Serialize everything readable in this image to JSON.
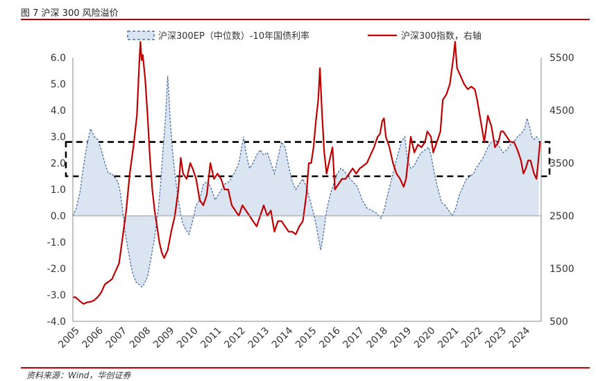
{
  "figure": {
    "title": "图 7 沪深 300 风险溢价",
    "source": "资料来源：Wind，华创证券"
  },
  "colors": {
    "ep_fill": "#dbe5f1",
    "ep_line": "#4a6fa5",
    "index_line": "#c00000",
    "box": "#000000"
  },
  "chart_data": {
    "type": "line",
    "title": "",
    "legend": {
      "placement": "top-center"
    },
    "grid": false,
    "x": {
      "ticks": [
        "2005",
        "2006",
        "2007",
        "2008",
        "2009",
        "2010",
        "2011",
        "2012",
        "2013",
        "2014",
        "2015",
        "2016",
        "2017",
        "2018",
        "2019",
        "2020",
        "2021",
        "2022",
        "2023",
        "2024"
      ],
      "range": [
        2005.0,
        2024.75
      ]
    },
    "y_left": {
      "range": [
        -4.0,
        6.0
      ],
      "ticks": [
        "-4.0",
        "-3.0",
        "-2.0",
        "-1.0",
        "0.0",
        "1.0",
        "2.0",
        "3.0",
        "4.0",
        "5.0",
        "6.0"
      ]
    },
    "y_right": {
      "range": [
        500,
        5500
      ],
      "ticks": [
        "500",
        "1500",
        "2500",
        "3500",
        "4500",
        "5500"
      ]
    },
    "band": {
      "lower": 1.5,
      "upper": 2.8
    },
    "series": [
      {
        "name": "沪深300EP（中位数）-10年国债利率",
        "style": "area-dashed",
        "axis": "left",
        "points": [
          [
            2005.0,
            0.0
          ],
          [
            2005.15,
            0.3
          ],
          [
            2005.3,
            0.9
          ],
          [
            2005.45,
            1.9
          ],
          [
            2005.6,
            2.7
          ],
          [
            2005.75,
            3.3
          ],
          [
            2005.9,
            3.0
          ],
          [
            2006.05,
            2.9
          ],
          [
            2006.2,
            2.5
          ],
          [
            2006.35,
            2.0
          ],
          [
            2006.5,
            1.6
          ],
          [
            2006.65,
            1.6
          ],
          [
            2006.8,
            1.4
          ],
          [
            2006.9,
            1.3
          ],
          [
            2007.0,
            0.9
          ],
          [
            2007.1,
            0.2
          ],
          [
            2007.2,
            -0.6
          ],
          [
            2007.35,
            -1.4
          ],
          [
            2007.5,
            -2.1
          ],
          [
            2007.65,
            -2.5
          ],
          [
            2007.8,
            -2.6
          ],
          [
            2007.9,
            -2.7
          ],
          [
            2008.0,
            -2.6
          ],
          [
            2008.15,
            -2.3
          ],
          [
            2008.3,
            -1.6
          ],
          [
            2008.45,
            -0.8
          ],
          [
            2008.6,
            0.2
          ],
          [
            2008.7,
            1.2
          ],
          [
            2008.8,
            2.5
          ],
          [
            2008.9,
            3.6
          ],
          [
            2009.0,
            5.3
          ],
          [
            2009.05,
            4.6
          ],
          [
            2009.1,
            3.7
          ],
          [
            2009.2,
            2.5
          ],
          [
            2009.3,
            1.6
          ],
          [
            2009.45,
            0.6
          ],
          [
            2009.6,
            -0.2
          ],
          [
            2009.75,
            -0.5
          ],
          [
            2009.9,
            -0.7
          ],
          [
            2010.05,
            -0.2
          ],
          [
            2010.2,
            0.4
          ],
          [
            2010.35,
            0.6
          ],
          [
            2010.5,
            1.2
          ],
          [
            2010.7,
            1.3
          ],
          [
            2010.85,
            1.0
          ],
          [
            2011.0,
            0.6
          ],
          [
            2011.2,
            0.9
          ],
          [
            2011.4,
            1.2
          ],
          [
            2011.6,
            1.3
          ],
          [
            2011.8,
            1.6
          ],
          [
            2012.0,
            2.0
          ],
          [
            2012.1,
            2.5
          ],
          [
            2012.2,
            3.0
          ],
          [
            2012.3,
            2.4
          ],
          [
            2012.45,
            1.8
          ],
          [
            2012.6,
            2.0
          ],
          [
            2012.75,
            2.3
          ],
          [
            2012.9,
            2.5
          ],
          [
            2013.05,
            2.3
          ],
          [
            2013.2,
            2.4
          ],
          [
            2013.35,
            2.0
          ],
          [
            2013.5,
            1.6
          ],
          [
            2013.65,
            2.2
          ],
          [
            2013.8,
            2.8
          ],
          [
            2013.95,
            2.6
          ],
          [
            2014.1,
            1.9
          ],
          [
            2014.25,
            1.3
          ],
          [
            2014.4,
            1.0
          ],
          [
            2014.55,
            1.2
          ],
          [
            2014.7,
            1.4
          ],
          [
            2014.85,
            1.1
          ],
          [
            2015.0,
            0.6
          ],
          [
            2015.15,
            0.1
          ],
          [
            2015.25,
            -0.3
          ],
          [
            2015.35,
            -0.8
          ],
          [
            2015.45,
            -1.3
          ],
          [
            2015.55,
            -0.8
          ],
          [
            2015.7,
            0.2
          ],
          [
            2015.85,
            0.8
          ],
          [
            2016.0,
            1.2
          ],
          [
            2016.15,
            1.6
          ],
          [
            2016.3,
            1.8
          ],
          [
            2016.45,
            1.7
          ],
          [
            2016.6,
            1.5
          ],
          [
            2016.8,
            1.3
          ],
          [
            2017.0,
            1.1
          ],
          [
            2017.2,
            0.6
          ],
          [
            2017.4,
            0.3
          ],
          [
            2017.6,
            0.2
          ],
          [
            2017.8,
            0.1
          ],
          [
            2018.0,
            -0.1
          ],
          [
            2018.15,
            0.3
          ],
          [
            2018.3,
            0.9
          ],
          [
            2018.5,
            1.6
          ],
          [
            2018.7,
            2.3
          ],
          [
            2018.85,
            2.8
          ],
          [
            2019.0,
            3.0
          ],
          [
            2019.1,
            2.2
          ],
          [
            2019.25,
            1.8
          ],
          [
            2019.4,
            1.9
          ],
          [
            2019.55,
            2.2
          ],
          [
            2019.7,
            2.4
          ],
          [
            2019.85,
            2.5
          ],
          [
            2020.0,
            2.6
          ],
          [
            2020.1,
            2.3
          ],
          [
            2020.25,
            1.6
          ],
          [
            2020.4,
            1.0
          ],
          [
            2020.55,
            0.5
          ],
          [
            2020.7,
            0.4
          ],
          [
            2020.85,
            0.2
          ],
          [
            2021.0,
            0.0
          ],
          [
            2021.15,
            0.3
          ],
          [
            2021.3,
            0.8
          ],
          [
            2021.45,
            1.1
          ],
          [
            2021.6,
            1.4
          ],
          [
            2021.75,
            1.5
          ],
          [
            2021.9,
            1.6
          ],
          [
            2022.0,
            1.8
          ],
          [
            2022.15,
            2.0
          ],
          [
            2022.3,
            2.2
          ],
          [
            2022.5,
            2.6
          ],
          [
            2022.65,
            2.8
          ],
          [
            2022.8,
            2.9
          ],
          [
            2023.0,
            2.6
          ],
          [
            2023.15,
            2.4
          ],
          [
            2023.3,
            2.5
          ],
          [
            2023.45,
            2.7
          ],
          [
            2023.6,
            2.8
          ],
          [
            2023.75,
            3.0
          ],
          [
            2023.9,
            3.1
          ],
          [
            2024.05,
            3.3
          ],
          [
            2024.15,
            3.7
          ],
          [
            2024.25,
            3.4
          ],
          [
            2024.35,
            3.0
          ],
          [
            2024.45,
            2.9
          ],
          [
            2024.55,
            3.0
          ],
          [
            2024.65,
            2.9
          ]
        ]
      },
      {
        "name": "沪深300指数，右轴",
        "style": "line",
        "axis": "right",
        "points": [
          [
            2005.0,
            950
          ],
          [
            2005.1,
            960
          ],
          [
            2005.2,
            920
          ],
          [
            2005.3,
            880
          ],
          [
            2005.45,
            830
          ],
          [
            2005.6,
            860
          ],
          [
            2005.75,
            870
          ],
          [
            2005.9,
            900
          ],
          [
            2006.05,
            960
          ],
          [
            2006.2,
            1050
          ],
          [
            2006.35,
            1200
          ],
          [
            2006.5,
            1250
          ],
          [
            2006.65,
            1300
          ],
          [
            2006.8,
            1450
          ],
          [
            2006.95,
            1600
          ],
          [
            2007.1,
            2100
          ],
          [
            2007.25,
            2600
          ],
          [
            2007.4,
            3300
          ],
          [
            2007.55,
            3800
          ],
          [
            2007.7,
            4400
          ],
          [
            2007.8,
            5400
          ],
          [
            2007.85,
            5800
          ],
          [
            2007.9,
            5450
          ],
          [
            2007.95,
            5550
          ],
          [
            2008.05,
            5100
          ],
          [
            2008.15,
            4400
          ],
          [
            2008.25,
            3600
          ],
          [
            2008.35,
            3000
          ],
          [
            2008.45,
            2600
          ],
          [
            2008.55,
            2300
          ],
          [
            2008.65,
            2000
          ],
          [
            2008.75,
            1800
          ],
          [
            2008.85,
            1700
          ],
          [
            2009.0,
            1850
          ],
          [
            2009.15,
            2200
          ],
          [
            2009.3,
            2500
          ],
          [
            2009.45,
            3000
          ],
          [
            2009.55,
            3600
          ],
          [
            2009.65,
            3300
          ],
          [
            2009.8,
            3200
          ],
          [
            2009.95,
            3500
          ],
          [
            2010.05,
            3400
          ],
          [
            2010.2,
            3200
          ],
          [
            2010.35,
            2800
          ],
          [
            2010.5,
            2700
          ],
          [
            2010.65,
            2900
          ],
          [
            2010.8,
            3500
          ],
          [
            2010.95,
            3200
          ],
          [
            2011.1,
            3300
          ],
          [
            2011.25,
            3200
          ],
          [
            2011.4,
            3000
          ],
          [
            2011.55,
            3000
          ],
          [
            2011.7,
            2700
          ],
          [
            2011.85,
            2600
          ],
          [
            2012.0,
            2500
          ],
          [
            2012.15,
            2700
          ],
          [
            2012.3,
            2600
          ],
          [
            2012.45,
            2500
          ],
          [
            2012.6,
            2400
          ],
          [
            2012.75,
            2300
          ],
          [
            2012.9,
            2500
          ],
          [
            2013.05,
            2700
          ],
          [
            2013.2,
            2500
          ],
          [
            2013.35,
            2600
          ],
          [
            2013.5,
            2200
          ],
          [
            2013.65,
            2400
          ],
          [
            2013.8,
            2400
          ],
          [
            2013.95,
            2300
          ],
          [
            2014.1,
            2200
          ],
          [
            2014.25,
            2200
          ],
          [
            2014.4,
            2150
          ],
          [
            2014.55,
            2300
          ],
          [
            2014.7,
            2400
          ],
          [
            2014.85,
            2900
          ],
          [
            2014.95,
            3500
          ],
          [
            2015.05,
            3500
          ],
          [
            2015.15,
            3800
          ],
          [
            2015.25,
            4300
          ],
          [
            2015.35,
            4700
          ],
          [
            2015.42,
            5300
          ],
          [
            2015.5,
            4500
          ],
          [
            2015.6,
            3700
          ],
          [
            2015.7,
            3300
          ],
          [
            2015.85,
            3600
          ],
          [
            2015.95,
            3800
          ],
          [
            2016.05,
            3000
          ],
          [
            2016.2,
            3100
          ],
          [
            2016.35,
            3200
          ],
          [
            2016.5,
            3200
          ],
          [
            2016.65,
            3300
          ],
          [
            2016.8,
            3400
          ],
          [
            2016.95,
            3300
          ],
          [
            2017.1,
            3400
          ],
          [
            2017.25,
            3450
          ],
          [
            2017.4,
            3500
          ],
          [
            2017.55,
            3650
          ],
          [
            2017.7,
            3800
          ],
          [
            2017.85,
            4000
          ],
          [
            2017.95,
            4050
          ],
          [
            2018.05,
            4300
          ],
          [
            2018.12,
            4350
          ],
          [
            2018.2,
            4000
          ],
          [
            2018.35,
            3800
          ],
          [
            2018.5,
            3500
          ],
          [
            2018.65,
            3300
          ],
          [
            2018.8,
            3200
          ],
          [
            2018.95,
            3050
          ],
          [
            2019.05,
            3200
          ],
          [
            2019.15,
            3600
          ],
          [
            2019.25,
            4000
          ],
          [
            2019.4,
            3700
          ],
          [
            2019.55,
            3850
          ],
          [
            2019.7,
            3800
          ],
          [
            2019.85,
            3900
          ],
          [
            2019.95,
            4100
          ],
          [
            2020.1,
            4000
          ],
          [
            2020.2,
            3700
          ],
          [
            2020.35,
            3900
          ],
          [
            2020.5,
            4100
          ],
          [
            2020.6,
            4700
          ],
          [
            2020.75,
            4800
          ],
          [
            2020.9,
            5000
          ],
          [
            2021.05,
            5500
          ],
          [
            2021.12,
            5800
          ],
          [
            2021.2,
            5300
          ],
          [
            2021.35,
            5150
          ],
          [
            2021.5,
            5000
          ],
          [
            2021.65,
            4900
          ],
          [
            2021.8,
            4950
          ],
          [
            2021.95,
            4900
          ],
          [
            2022.05,
            4700
          ],
          [
            2022.2,
            4300
          ],
          [
            2022.35,
            3900
          ],
          [
            2022.5,
            4400
          ],
          [
            2022.65,
            4200
          ],
          [
            2022.8,
            3800
          ],
          [
            2022.95,
            3900
          ],
          [
            2023.05,
            4100
          ],
          [
            2023.15,
            4100
          ],
          [
            2023.3,
            4000
          ],
          [
            2023.45,
            3900
          ],
          [
            2023.6,
            3900
          ],
          [
            2023.75,
            3750
          ],
          [
            2023.9,
            3550
          ],
          [
            2024.0,
            3300
          ],
          [
            2024.1,
            3400
          ],
          [
            2024.2,
            3550
          ],
          [
            2024.3,
            3550
          ],
          [
            2024.45,
            3300
          ],
          [
            2024.55,
            3200
          ],
          [
            2024.62,
            3500
          ],
          [
            2024.7,
            3900
          ]
        ]
      }
    ]
  }
}
